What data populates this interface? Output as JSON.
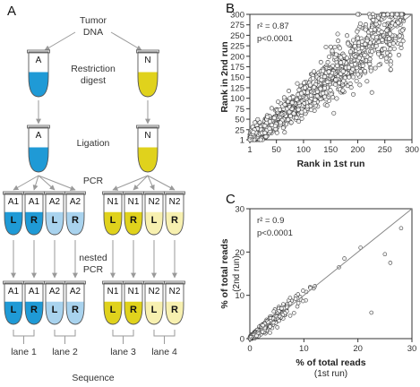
{
  "panels": {
    "a": "A",
    "b": "B",
    "c": "C"
  },
  "flow": {
    "tumor_dna": [
      "Tumor",
      "DNA"
    ],
    "restriction_digest": [
      "Restriction",
      "digest"
    ],
    "ligation": "Ligation",
    "pcr": "PCR",
    "nested_pcr": [
      "nested",
      "PCR"
    ],
    "sequence": "Sequence",
    "tube_top_labels": [
      "A",
      "N"
    ],
    "pcr_tubes": [
      {
        "name": "A1",
        "side": "L"
      },
      {
        "name": "A1",
        "side": "R"
      },
      {
        "name": "A2",
        "side": "L"
      },
      {
        "name": "A2",
        "side": "R"
      },
      {
        "name": "N1",
        "side": "L"
      },
      {
        "name": "N1",
        "side": "R"
      },
      {
        "name": "N2",
        "side": "L"
      },
      {
        "name": "N2",
        "side": "R"
      }
    ],
    "lanes": [
      "lane 1",
      "lane 2",
      "lane 3",
      "lane 4"
    ]
  },
  "colors": {
    "blue": "#1f9ad6",
    "light_blue": "#a9d3ee",
    "yellow": "#e0d21c",
    "light_yellow": "#f7f0b0"
  },
  "chart_data": [
    {
      "type": "scatter",
      "panel": "B",
      "xlabel": "Rank in 1st run",
      "ylabel": "Rank in 2nd run",
      "xticks": [
        1,
        50,
        100,
        150,
        200,
        250,
        300
      ],
      "yticks": [
        1,
        25,
        50,
        75,
        100,
        125,
        150,
        175,
        200,
        225,
        250,
        275,
        300
      ],
      "xlim": [
        1,
        300
      ],
      "ylim": [
        1,
        300
      ],
      "annotations": [
        "r² = 0.87",
        "p<0.0001"
      ],
      "identity_line": true,
      "point_count": 1200,
      "trend": "strong positive correlation along y = x; spread widens with rank"
    },
    {
      "type": "scatter",
      "panel": "C",
      "xlabel": "% of total reads",
      "xlabel_sub": "(1st run)",
      "ylabel": "% of total reads",
      "ylabel_sub": "(2nd run)",
      "xticks": [
        0,
        10,
        20,
        30
      ],
      "yticks": [
        0,
        10,
        20,
        30
      ],
      "xlim": [
        0,
        30
      ],
      "ylim": [
        0,
        30
      ],
      "annotations": [
        "r² = 0.9",
        "p<0.0001"
      ],
      "identity_line": true,
      "point_count": 700,
      "trend": "most points below 10%; few outliers up to ~28% on x",
      "outliers": [
        [
          28,
          25.5
        ],
        [
          25,
          19.5
        ],
        [
          26,
          17.5
        ],
        [
          22.5,
          6
        ],
        [
          20.5,
          21
        ],
        [
          17.5,
          18.5
        ],
        [
          16.5,
          16.5
        ]
      ]
    }
  ]
}
